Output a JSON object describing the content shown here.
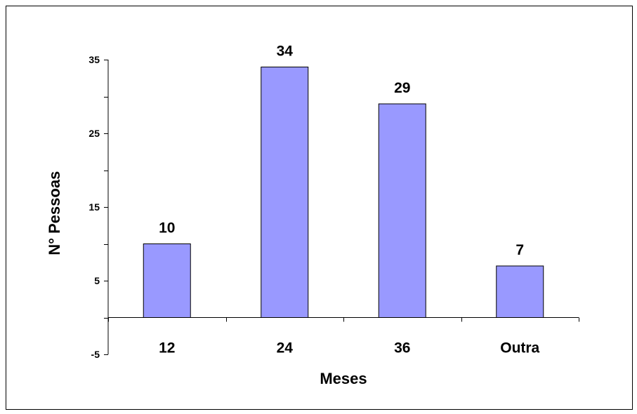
{
  "chart_data": {
    "type": "bar",
    "categories": [
      "12",
      "24",
      "36",
      "Outra"
    ],
    "values": [
      10,
      34,
      29,
      7
    ],
    "title": "",
    "xlabel": "Meses",
    "ylabel": "N° Pessoas",
    "ylim": [
      -5,
      35
    ],
    "yticks": [
      -5,
      5,
      15,
      25,
      35
    ],
    "y_tick_labels": [
      "-5",
      "5",
      "15",
      "25",
      "35"
    ],
    "y_minor_step": 5,
    "data_labels": [
      "10",
      "34",
      "29",
      "7"
    ],
    "grid": false,
    "legend": "none",
    "colors": {
      "bar_fill": "#9999ff",
      "bar_stroke": "#000000",
      "axis": "#000000"
    }
  }
}
